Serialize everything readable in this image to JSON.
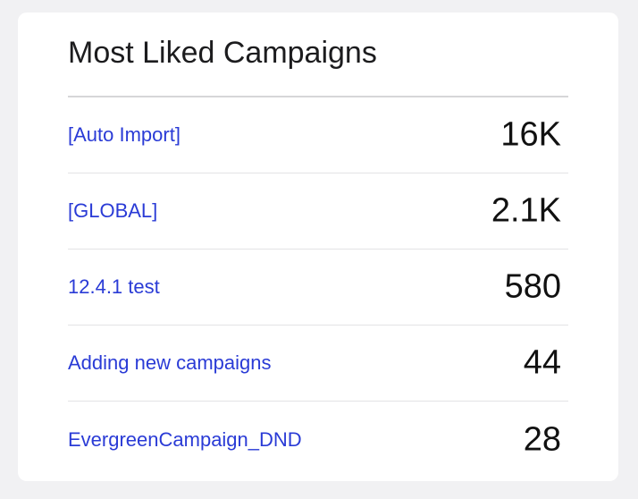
{
  "card": {
    "title": "Most Liked Campaigns",
    "rows": [
      {
        "name": "[Auto Import]",
        "value": "16K"
      },
      {
        "name": "[GLOBAL]",
        "value": "2.1K"
      },
      {
        "name": "12.4.1 test",
        "value": "580"
      },
      {
        "name": "Adding new campaigns",
        "value": "44"
      },
      {
        "name": "EvergreenCampaign_DND",
        "value": "28"
      }
    ]
  },
  "colors": {
    "link": "#2a3bd6",
    "value": "#111111",
    "background": "#f1f1f3",
    "card": "#ffffff"
  }
}
